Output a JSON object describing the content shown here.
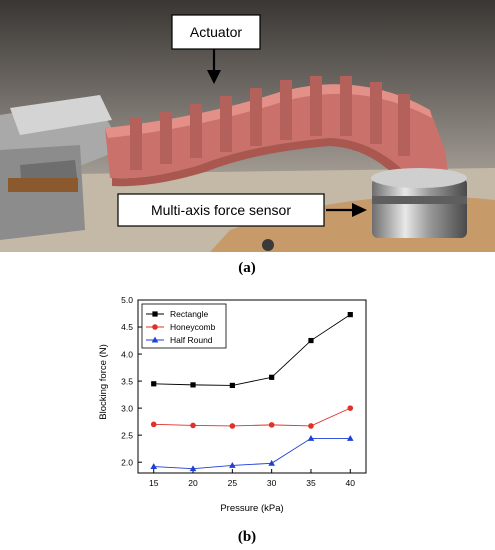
{
  "photo": {
    "callouts": {
      "actuator": "Actuator",
      "sensor": "Multi-axis force sensor"
    },
    "caption": "(a)"
  },
  "plot": {
    "caption": "(b)"
  },
  "chart_data": {
    "type": "line",
    "xlabel": "Pressure (kPa)",
    "ylabel": "Blocking force (N)",
    "xlim": [
      13,
      42
    ],
    "ylim": [
      1.8,
      5.0
    ],
    "x": [
      15,
      20,
      25,
      30,
      35,
      40
    ],
    "x_ticks": [
      "15",
      "20",
      "25",
      "30",
      "35",
      "40"
    ],
    "y_ticks": [
      "2.0",
      "2.5",
      "3.0",
      "3.5",
      "4.0",
      "4.5",
      "5.0"
    ],
    "grid": false,
    "legend": "top-left",
    "series": [
      {
        "name": "Rectangle",
        "color": "#000000",
        "marker": "square",
        "values": [
          3.45,
          3.43,
          3.42,
          3.57,
          4.25,
          4.73
        ]
      },
      {
        "name": "Honeycomb",
        "color": "#e0302a",
        "marker": "circle",
        "values": [
          2.7,
          2.68,
          2.67,
          2.69,
          2.67,
          3.0
        ]
      },
      {
        "name": "Half Round",
        "color": "#1f3fd8",
        "marker": "triangle",
        "values": [
          1.92,
          1.88,
          1.94,
          1.98,
          2.44,
          2.44
        ]
      }
    ]
  }
}
